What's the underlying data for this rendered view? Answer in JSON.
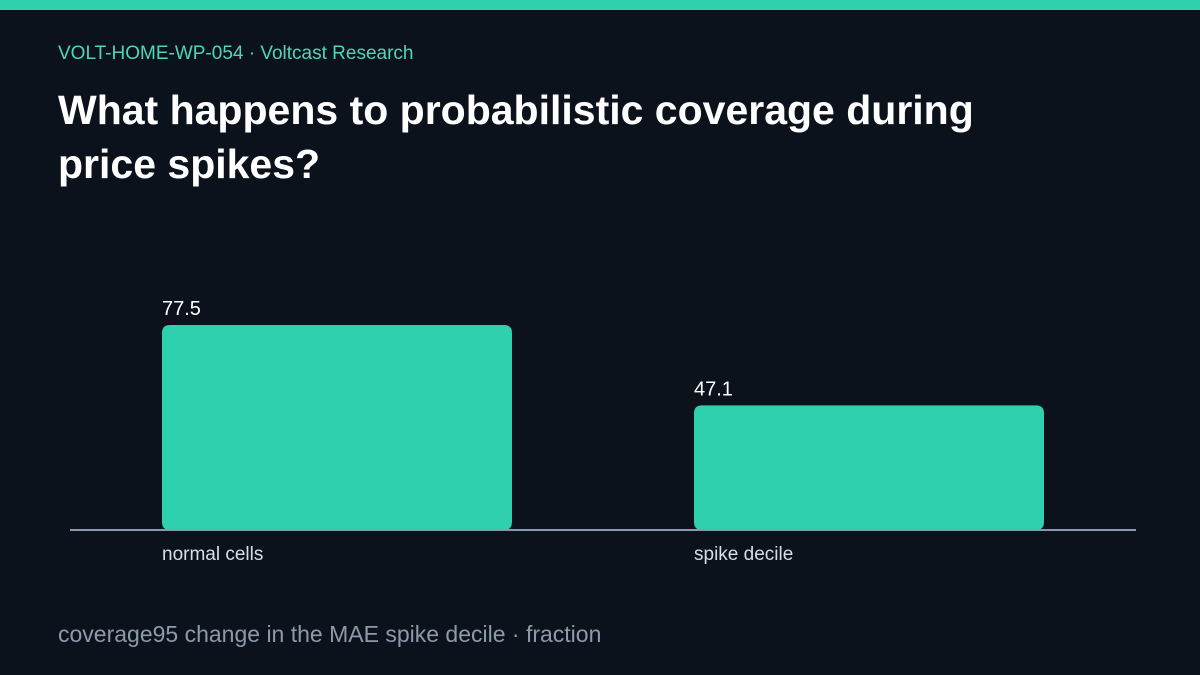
{
  "header": {
    "eyebrow": "VOLT-HOME-WP-054 · Voltcast Research",
    "title": "What happens to probabilistic coverage during price spikes?"
  },
  "footer": {
    "caption": "coverage95 change in the MAE spike decile · fraction"
  },
  "colors": {
    "accent": "#2fd0ad",
    "background": "#0b121c",
    "axis": "#8a98ad",
    "label": "#d8dee6"
  },
  "chart_data": {
    "type": "bar",
    "title": "",
    "xlabel": "",
    "ylabel": "",
    "categories": [
      "normal cells",
      "spike decile"
    ],
    "values": [
      77.5,
      47.1
    ],
    "value_labels": [
      "77.5",
      "47.1"
    ],
    "ylim": [
      0,
      100
    ],
    "grid": false,
    "legend": "none"
  }
}
